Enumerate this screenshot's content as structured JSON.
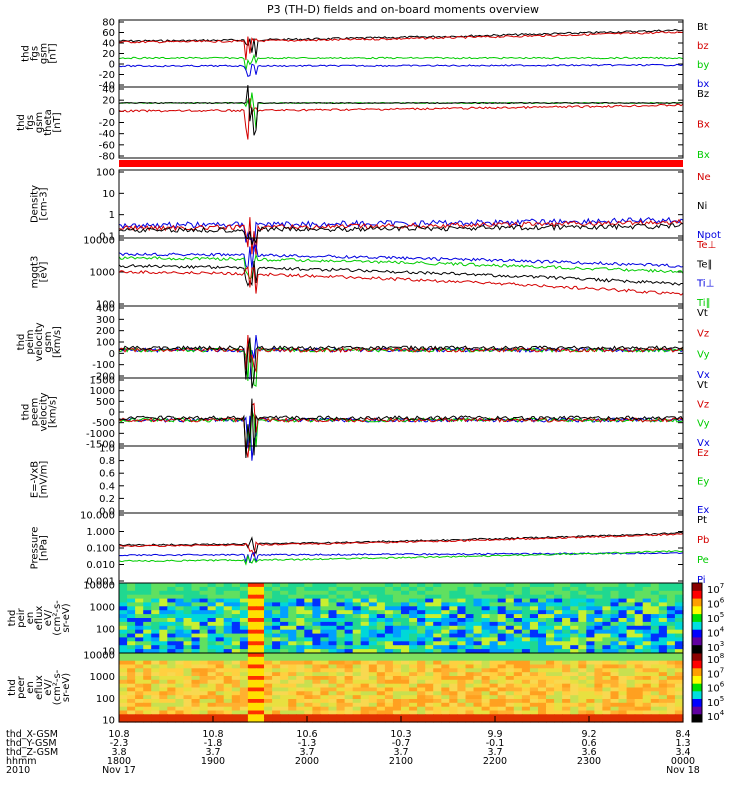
{
  "title": "P3 (TH-D) fields and on-board moments overview",
  "colors": {
    "black": "#000000",
    "red": "#d40000",
    "green": "#00cc00",
    "blue": "#0000e0"
  },
  "chart_data": {
    "type": "line",
    "x_start": "1800",
    "x_end": "0000",
    "panels": [
      {
        "id": "fgs-gsm",
        "ylabel": [
          "thd",
          "fgs",
          "gsm",
          "[nT]"
        ],
        "yticks": [
          "80",
          "60",
          "40",
          "20",
          "0",
          "-20",
          "-40"
        ],
        "legend": [
          {
            "name": "Bt",
            "color": "black"
          },
          {
            "name": "bz",
            "color": "red"
          },
          {
            "name": "by",
            "color": "green"
          },
          {
            "name": "bx",
            "color": "blue"
          }
        ]
      },
      {
        "id": "fgs-gsm-theta",
        "ylabel": [
          "thd",
          "fgs",
          "gsm",
          "theta",
          "[nT]"
        ],
        "yticks": [
          "40",
          "20",
          "0",
          "-20",
          "-40",
          "-60",
          "-80"
        ],
        "legend": [
          {
            "name": "Bz",
            "color": "black"
          },
          {
            "name": "Bx",
            "color": "red"
          },
          {
            "name": "Bx",
            "color": "green"
          }
        ]
      },
      {
        "id": "density",
        "ylabel": [
          "Density",
          "[cm-3]"
        ],
        "yticks": [
          "100",
          "10",
          "1",
          "0.1"
        ],
        "legend": [
          {
            "name": "Ne",
            "color": "red"
          },
          {
            "name": "Ni",
            "color": "black"
          },
          {
            "name": "Npot",
            "color": "blue"
          }
        ]
      },
      {
        "id": "temperature",
        "ylabel": [
          "mgqt3",
          "[eV]"
        ],
        "yticks": [
          "10000",
          "1000",
          "100"
        ],
        "legend": [
          {
            "name": "Te⊥",
            "color": "red"
          },
          {
            "name": "Te∥",
            "color": "black"
          },
          {
            "name": "Ti⊥",
            "color": "blue"
          },
          {
            "name": "Ti∥",
            "color": "green"
          }
        ]
      },
      {
        "id": "peim-velocity",
        "ylabel": [
          "thd",
          "peim",
          "velocity",
          "gsm",
          "[km/s]"
        ],
        "yticks": [
          "400",
          "300",
          "200",
          "100",
          "0",
          "-100",
          "-200"
        ],
        "legend": [
          {
            "name": "Vt",
            "color": "black"
          },
          {
            "name": "Vz",
            "color": "red"
          },
          {
            "name": "Vy",
            "color": "green"
          },
          {
            "name": "Vx",
            "color": "blue"
          }
        ]
      },
      {
        "id": "peem-velocity",
        "ylabel": [
          "thd",
          "peem",
          "velocity",
          "[km/s]"
        ],
        "yticks": [
          "1500",
          "1000",
          "500",
          "0",
          "-500",
          "-1000",
          "-1500"
        ],
        "legend": [
          {
            "name": "Vt",
            "color": "black"
          },
          {
            "name": "Vz",
            "color": "red"
          },
          {
            "name": "Vy",
            "color": "green"
          },
          {
            "name": "Vx",
            "color": "blue"
          }
        ]
      },
      {
        "id": "efield",
        "ylabel": [
          "E=-VxB",
          "[mV/m]"
        ],
        "yticks": [
          "1.0",
          "0.8",
          "0.6",
          "0.4",
          "0.2",
          "0.0"
        ],
        "legend": [
          {
            "name": "Ez",
            "color": "red"
          },
          {
            "name": "Ey",
            "color": "green"
          },
          {
            "name": "Ex",
            "color": "blue"
          }
        ]
      },
      {
        "id": "pressure",
        "ylabel": [
          "Pressure",
          "[nPa]"
        ],
        "yticks": [
          "10.000",
          "1.000",
          "0.100",
          "0.010",
          "0.001"
        ],
        "legend": [
          {
            "name": "Pt",
            "color": "black"
          },
          {
            "name": "Pb",
            "color": "red"
          },
          {
            "name": "Pe",
            "color": "green"
          },
          {
            "name": "Pi",
            "color": "blue"
          }
        ]
      },
      {
        "id": "peir-spec",
        "ylabel": [
          "thd",
          "peir",
          "en",
          "eflux",
          "eV/",
          "(cm²-s-",
          "sr-eV)"
        ],
        "yticks": [
          "10000",
          "1000",
          "100",
          "10"
        ],
        "colorbar": [
          {
            "b": "10",
            "e": "7"
          },
          {
            "b": "10",
            "e": "6"
          },
          {
            "b": "10",
            "e": "5"
          },
          {
            "b": "10",
            "e": "4"
          },
          {
            "b": "10",
            "e": "3"
          }
        ]
      },
      {
        "id": "peer-spec",
        "ylabel": [
          "thd",
          "peer",
          "en",
          "eflux",
          "eV/",
          "(cm²-s-",
          "sr-eV)"
        ],
        "yticks": [
          "10000",
          "1000",
          "100",
          "10"
        ],
        "colorbar": [
          {
            "b": "10",
            "e": "8"
          },
          {
            "b": "10",
            "e": "7"
          },
          {
            "b": "10",
            "e": "6"
          },
          {
            "b": "10",
            "e": "5"
          },
          {
            "b": "10",
            "e": "4"
          }
        ]
      }
    ],
    "bottom_axis": {
      "row_labels": [
        "thd_X-GSM",
        "thd_Y-GSM",
        "thd_Z-GSM",
        "hhmm",
        "2010"
      ],
      "columns": [
        {
          "X": "10.8",
          "Y": "-2.3",
          "Z": "3.8",
          "hhmm": "1800",
          "date": "Nov 17"
        },
        {
          "X": "10.8",
          "Y": "-1.8",
          "Z": "3.7",
          "hhmm": "1900",
          "date": ""
        },
        {
          "X": "10.6",
          "Y": "-1.3",
          "Z": "3.7",
          "hhmm": "2000",
          "date": ""
        },
        {
          "X": "10.3",
          "Y": "-0.7",
          "Z": "3.7",
          "hhmm": "2100",
          "date": ""
        },
        {
          "X": "9.9",
          "Y": "-0.1",
          "Z": "3.7",
          "hhmm": "2200",
          "date": ""
        },
        {
          "X": "9.2",
          "Y": "0.6",
          "Z": "3.6",
          "hhmm": "2300",
          "date": ""
        },
        {
          "X": "8.4",
          "Y": "1.3",
          "Z": "3.4",
          "hhmm": "0000",
          "date": "Nov 18"
        }
      ]
    }
  }
}
